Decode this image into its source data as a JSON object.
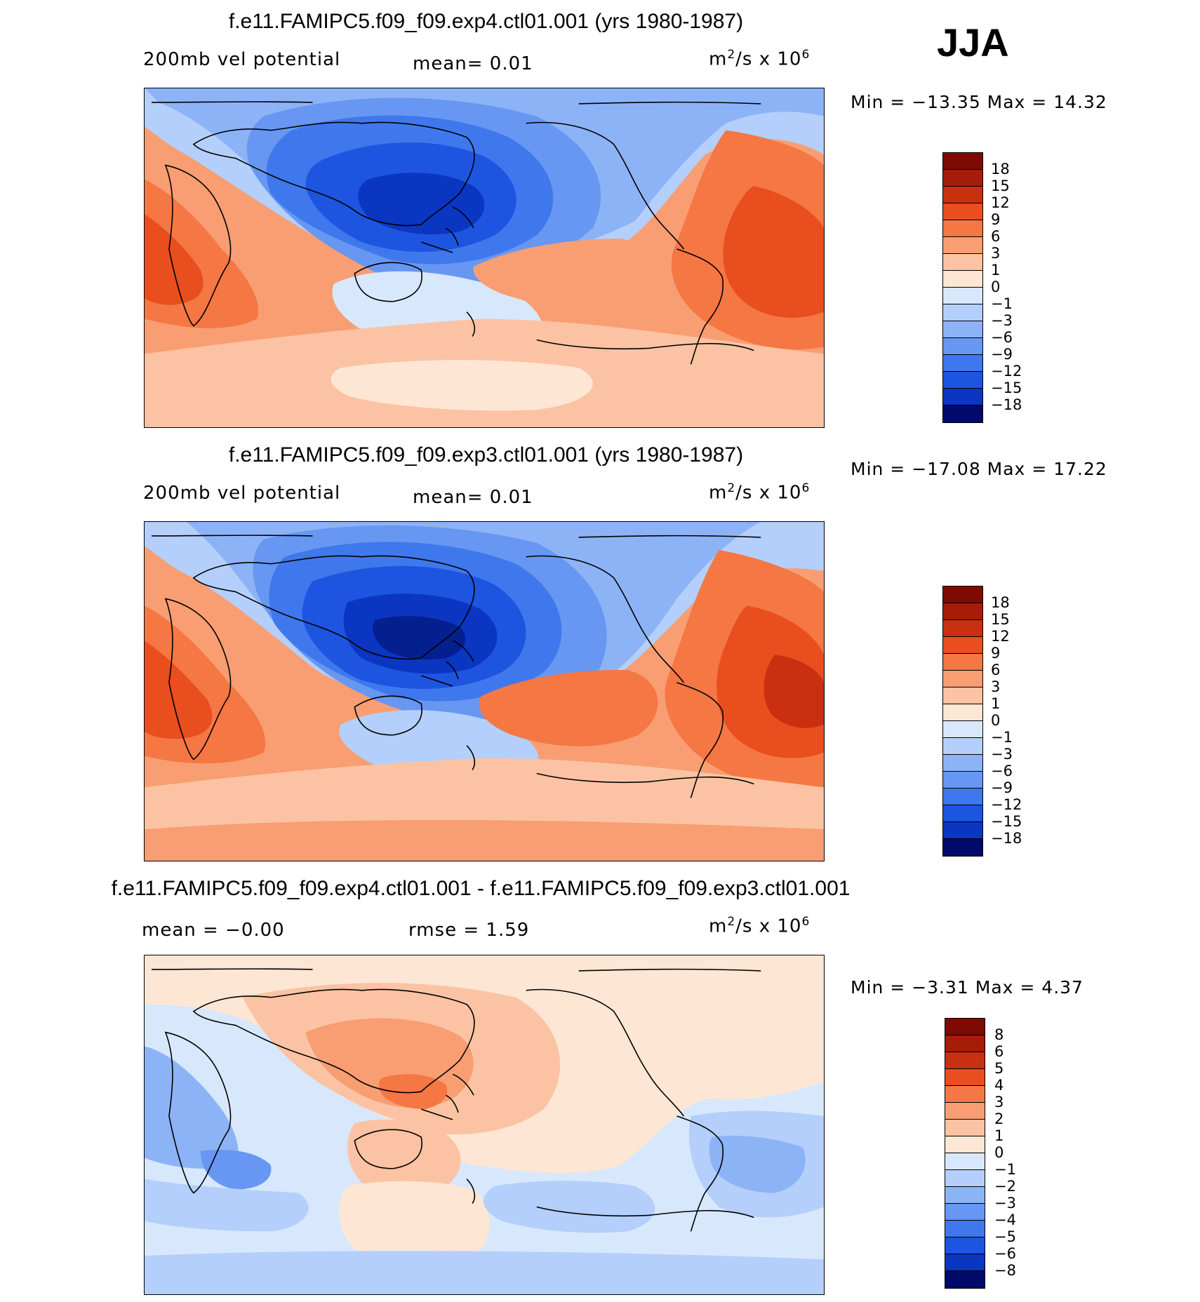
{
  "season": "JJA",
  "colors": {
    "warm": [
      "#fde6d3",
      "#fbc3a3",
      "#f89e72",
      "#f47744",
      "#e94e1e",
      "#c9300f",
      "#a51c08",
      "#7d0b04"
    ],
    "cool": [
      "#d8e8fc",
      "#b4cffb",
      "#8db3f7",
      "#6797f2",
      "#3f78ec",
      "#1d55e0",
      "#0a36c2",
      "#04208f",
      "#000a6b"
    ]
  },
  "panels": [
    {
      "title": "f.e11.FAMIPC5.f09_f09.exp4.ctl01.001 (yrs 1980-1987)",
      "left_label": "200mb  vel  potential",
      "mean_text": "mean=    0.01",
      "units_base": "m",
      "units_mid": "/s  x  10",
      "units_exp1": "2",
      "units_exp2": "6",
      "min_label": "Min  =  −13.35",
      "max_label": "Max  =    14.32",
      "colorbar_labels": [
        "18",
        "15",
        "12",
        "9",
        "6",
        "3",
        "1",
        "0",
        "−1",
        "−3",
        "−6",
        "−9",
        "−12",
        "−15",
        "−18"
      ],
      "colorbar_colors": [
        "#7d0b04",
        "#a51c08",
        "#c9300f",
        "#e94e1e",
        "#f47744",
        "#f89e72",
        "#fbc3a3",
        "#fde6d3",
        "#d8e8fc",
        "#b4cffb",
        "#8db3f7",
        "#6797f2",
        "#3f78ec",
        "#1d55e0",
        "#0a36c2",
        "#000a6b"
      ]
    },
    {
      "title": "f.e11.FAMIPC5.f09_f09.exp3.ctl01.001 (yrs 1980-1987)",
      "left_label": "200mb  vel  potential",
      "mean_text": "mean=    0.01",
      "units_base": "m",
      "units_mid": "/s  x  10",
      "units_exp1": "2",
      "units_exp2": "6",
      "min_label": "Min  =  −17.08",
      "max_label": "Max  =    17.22",
      "colorbar_labels": [
        "18",
        "15",
        "12",
        "9",
        "6",
        "3",
        "1",
        "0",
        "−1",
        "−3",
        "−6",
        "−9",
        "−12",
        "−15",
        "−18"
      ],
      "colorbar_colors": [
        "#7d0b04",
        "#a51c08",
        "#c9300f",
        "#e94e1e",
        "#f47744",
        "#f89e72",
        "#fbc3a3",
        "#fde6d3",
        "#d8e8fc",
        "#b4cffb",
        "#8db3f7",
        "#6797f2",
        "#3f78ec",
        "#1d55e0",
        "#0a36c2",
        "#000a6b"
      ]
    },
    {
      "title": "f.e11.FAMIPC5.f09_f09.exp4.ctl01.001 - f.e11.FAMIPC5.f09_f09.exp3.ctl01.001",
      "left_label": "mean  =   −0.00",
      "mean_text": "rmse  =    1.59",
      "units_base": "m",
      "units_mid": "/s  x  10",
      "units_exp1": "2",
      "units_exp2": "6",
      "min_label": "Min  =    −3.31",
      "max_label": "Max  =    4.37",
      "colorbar_labels": [
        "8",
        "6",
        "5",
        "4",
        "3",
        "2",
        "1",
        "0",
        "−1",
        "−2",
        "−3",
        "−4",
        "−5",
        "−6",
        "−8"
      ],
      "colorbar_colors": [
        "#7d0b04",
        "#a51c08",
        "#c9300f",
        "#e94e1e",
        "#f47744",
        "#f89e72",
        "#fbc3a3",
        "#fde6d3",
        "#d8e8fc",
        "#b4cffb",
        "#8db3f7",
        "#6797f2",
        "#3f78ec",
        "#1d55e0",
        "#0a36c2",
        "#000a6b"
      ]
    }
  ]
}
